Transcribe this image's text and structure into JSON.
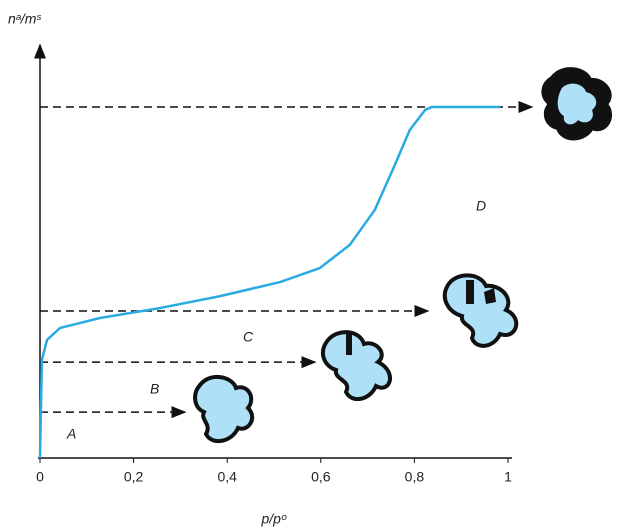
{
  "chart_data": {
    "type": "line",
    "y_label": "nᵃ/mˢ",
    "x_label": "p/pᵒ",
    "x": [
      0,
      0.004,
      0.015,
      0.043,
      0.128,
      0.256,
      0.385,
      0.513,
      0.598,
      0.662,
      0.715,
      0.758,
      0.79,
      0.823,
      0.838,
      0.983
    ],
    "series": [
      {
        "color": "#29abe2",
        "values": [
          0,
          0.237,
          0.286,
          0.315,
          0.339,
          0.363,
          0.392,
          0.426,
          0.46,
          0.516,
          0.6,
          0.709,
          0.794,
          0.843,
          0.85,
          0.85
        ]
      }
    ],
    "xlim": [
      0,
      1
    ],
    "ylim": [
      0,
      1
    ],
    "xticks": [
      0,
      {
        "value": 0.2,
        "label": "0,2"
      },
      {
        "value": 0.4,
        "label": "0,4"
      },
      {
        "value": 0.6,
        "label": "0,6"
      },
      {
        "value": 0.8,
        "label": "0,8"
      },
      1
    ],
    "dashed_levels": [
      0.111,
      0.232,
      0.356,
      0.85
    ],
    "annotations": [
      "A",
      "B",
      "C",
      "D"
    ]
  }
}
